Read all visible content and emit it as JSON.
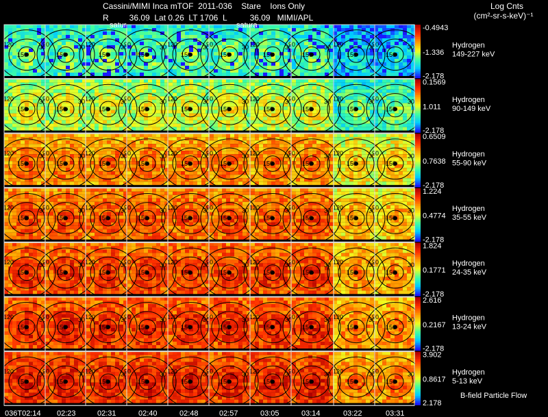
{
  "header": {
    "title": "Cassini/MIMI Inca mTOF  2011-036    Stare    Ions Only",
    "subtitle": "R         36.09  Lat 0.26  LT 1706  L          36.09   MIMI/APL",
    "legend_title": "Log Cnts",
    "legend_units": "(cm²-sr-s-keV)⁻¹",
    "overlay_labels": [
      "satur",
      "satura"
    ],
    "footer_note": "B-field Particle Flow"
  },
  "colors": {
    "background": "#000000",
    "grid": "#dcdcdc",
    "contour": "#000000",
    "colormap": [
      "#1a1aff",
      "#00ccff",
      "#40ffa0",
      "#f0ff20",
      "#ffa000",
      "#ff3000",
      "#b00000"
    ]
  },
  "chart_data": {
    "type": "heatmap",
    "time_labels": [
      "036T02:14",
      "02:23",
      "02:31",
      "02:40",
      "02:48",
      "02:57",
      "03:05",
      "03:14",
      "03:22",
      "03:31"
    ],
    "contour_labels": [
      "30",
      "60",
      "90",
      "120",
      "150"
    ],
    "panels": [
      {
        "species": "Hydrogen",
        "energy": "149-227 keV",
        "cmax": "-0.4943",
        "cmid": "-1.336",
        "cmin": "-2.178",
        "level": 0.35
      },
      {
        "species": "Hydrogen",
        "energy": "90-149 keV",
        "cmax": "0.1569",
        "cmid": "1.011",
        "cmin": "-2.178",
        "level": 0.5
      },
      {
        "species": "Hydrogen",
        "energy": "55-90 keV",
        "cmax": "0.6509",
        "cmid": "0.7638",
        "cmin": "-2.178",
        "level": 0.72
      },
      {
        "species": "Hydrogen",
        "energy": "35-55 keV",
        "cmax": "1.224",
        "cmid": "0.4774",
        "cmin": "-2.178",
        "level": 0.78
      },
      {
        "species": "Hydrogen",
        "energy": "24-35 keV",
        "cmax": "1.824",
        "cmid": "0.1771",
        "cmin": "-2.178",
        "level": 0.82
      },
      {
        "species": "Hydrogen",
        "energy": "13-24 keV",
        "cmax": "2.616",
        "cmid": "0.2167",
        "cmin": "-2.178",
        "level": 0.85
      },
      {
        "species": "Hydrogen",
        "energy": "5-13 keV",
        "cmax": "3.902",
        "cmid": "0.8617",
        "cmin": "2.178",
        "level": 0.87
      }
    ]
  }
}
